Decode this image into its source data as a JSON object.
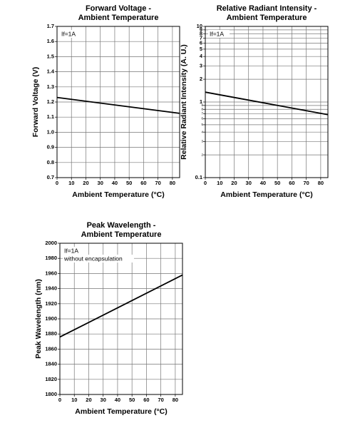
{
  "chart_data": [
    {
      "type": "line",
      "title": [
        "Forward Voltage -",
        "Ambient Temperature"
      ],
      "x_label": "Ambient Temperature (°C)",
      "y_label": "Forward Voltage (V)",
      "annotations": [
        "If=1A"
      ],
      "x": [
        0,
        85
      ],
      "values": [
        1.23,
        1.125
      ],
      "color": "#000000",
      "xlim": [
        0,
        85
      ],
      "xticks": [
        0,
        10,
        20,
        30,
        40,
        50,
        60,
        70,
        80
      ],
      "ylim": [
        0.7,
        1.7
      ],
      "yticks": [
        0.7,
        0.8,
        0.9,
        {
          "value": 1,
          "label": "1.0"
        },
        1.1,
        1.2,
        1.3,
        1.4,
        1.5,
        1.6,
        1.7
      ],
      "grid": true
    },
    {
      "type": "line",
      "title": [
        "Relative Radiant Intensity -",
        "Ambient Temperature"
      ],
      "x_label": "Ambient Temperature (°C)",
      "y_label": "Relative Radiant Intensity (A. U.)",
      "annotations": [
        "If=1A"
      ],
      "x": [
        0,
        85
      ],
      "values": [
        1.35,
        0.68
      ],
      "color": "#000000",
      "xlim": [
        0,
        85
      ],
      "xticks": [
        0,
        10,
        20,
        30,
        40,
        50,
        60,
        70,
        80
      ],
      "ylim": [
        0.1,
        10
      ],
      "log_y": true,
      "yticks": [
        0.1,
        {
          "value": 0.2,
          "label": "2"
        },
        {
          "value": 0.3,
          "label": "3"
        },
        {
          "value": 0.4,
          "label": "4"
        },
        {
          "value": 0.5,
          "label": "5"
        },
        {
          "value": 0.6,
          "label": "6"
        },
        {
          "value": 0.7,
          "label": "7"
        },
        {
          "value": 0.8,
          "label": "8"
        },
        {
          "value": 0.9,
          "label": "9"
        },
        1,
        2,
        3,
        4,
        5,
        6,
        7,
        8,
        9,
        10
      ],
      "grid": true
    },
    {
      "type": "line",
      "title": [
        "Peak Wavelength -",
        "Ambient Temperature"
      ],
      "x_label": "Ambient Temperature (°C)",
      "y_label": "Peak Wavelength (nm)",
      "annotations": [
        "If=1A",
        "without encapsulation"
      ],
      "x": [
        0,
        85
      ],
      "values": [
        1876,
        1958
      ],
      "color": "#000000",
      "xlim": [
        0,
        85
      ],
      "xticks": [
        0,
        10,
        20,
        30,
        40,
        50,
        60,
        70,
        80
      ],
      "ylim": [
        1800,
        2000
      ],
      "yticks": [
        1800,
        1820,
        1840,
        1860,
        1880,
        1900,
        1920,
        1940,
        1960,
        1980,
        2000
      ],
      "grid": true
    }
  ]
}
